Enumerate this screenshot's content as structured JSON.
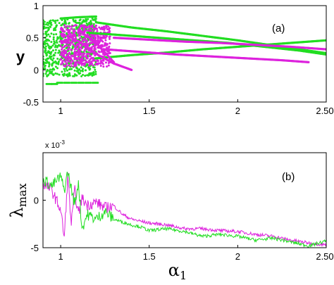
{
  "chart_data": [
    {
      "type": "scatter",
      "annotation": "(a)",
      "ylabel": "y",
      "xlim": [
        0.9,
        2.5
      ],
      "ylim": [
        -0.5,
        1
      ],
      "x_ticks": [
        "1",
        "1.5",
        "2",
        "2.50"
      ],
      "y_ticks": [
        "1",
        "0.5",
        "0",
        "-0.5"
      ],
      "colors": [
        "#22dd22",
        "#dd22dd"
      ],
      "series": [
        {
          "color": "#22dd22",
          "branches": [
            {
              "x": [
                1.2,
                1.4,
                1.6,
                1.8,
                2.0,
                2.2,
                2.4,
                2.5
              ],
              "y": [
                0.74,
                0.66,
                0.6,
                0.53,
                0.46,
                0.38,
                0.3,
                0.26
              ]
            },
            {
              "x": [
                1.15,
                1.35,
                1.55,
                1.75,
                1.95,
                2.15,
                2.35,
                2.5
              ],
              "y": [
                0.58,
                0.54,
                0.5,
                0.46,
                0.42,
                0.36,
                0.3,
                0.24
              ]
            },
            {
              "x": [
                1.2,
                1.4,
                1.6,
                1.8,
                2.0,
                2.2,
                2.4,
                2.5
              ],
              "y": [
                0.18,
                0.23,
                0.27,
                0.32,
                0.36,
                0.4,
                0.44,
                0.46
              ]
            },
            {
              "x": [
                1.0,
                1.1,
                1.2
              ],
              "y": [
                0.8,
                0.82,
                0.83
              ]
            }
          ],
          "chaotic_band": {
            "x": [
              0.9,
              1.2
            ],
            "y": [
              -0.1,
              0.8
            ]
          },
          "low_points": {
            "x": [
              0.92,
              0.95,
              0.98,
              1.02,
              1.06,
              1.1,
              1.14,
              1.18
            ],
            "y": [
              -0.22,
              -0.22,
              -0.2,
              -0.2,
              -0.2,
              -0.2,
              -0.2,
              -0.2
            ]
          }
        },
        {
          "color": "#dd22dd",
          "branches": [
            {
              "x": [
                1.3,
                1.5,
                1.7,
                1.9,
                2.1,
                2.3,
                2.5
              ],
              "y": [
                0.5,
                0.47,
                0.44,
                0.42,
                0.39,
                0.36,
                0.32
              ]
            },
            {
              "x": [
                1.25,
                1.45,
                1.65,
                1.85,
                2.05,
                2.25,
                2.4
              ],
              "y": [
                0.32,
                0.28,
                0.24,
                0.21,
                0.18,
                0.15,
                0.12
              ]
            },
            {
              "x": [
                1.1,
                1.2,
                1.3,
                1.4
              ],
              "y": [
                0.45,
                0.25,
                0.1,
                0.0
              ]
            },
            {
              "x": [
                1.1,
                1.2,
                1.3
              ],
              "y": [
                0.62,
                0.42,
                0.12
              ]
            }
          ],
          "chaotic_band": {
            "x": [
              1.0,
              1.28
            ],
            "y": [
              0.05,
              0.7
            ]
          }
        }
      ]
    },
    {
      "type": "line",
      "annotation": "(b)",
      "ylabel": "λmax",
      "xlabel": "α1",
      "scale_label": "x 10-3",
      "xlim": [
        0.9,
        2.5
      ],
      "ylim": [
        -5,
        5
      ],
      "x_ticks": [
        "1",
        "1.5",
        "2",
        "2.50"
      ],
      "y_ticks": [
        "0",
        "-5"
      ],
      "colors": [
        "#dd22dd",
        "#22dd22"
      ],
      "series": [
        {
          "color": "#dd22dd",
          "x": [
            0.9,
            0.95,
            1.0,
            1.02,
            1.04,
            1.06,
            1.08,
            1.1,
            1.12,
            1.15,
            1.2,
            1.25,
            1.3,
            1.35,
            1.4,
            1.45,
            1.5,
            1.6,
            1.7,
            1.8,
            1.9,
            2.0,
            2.1,
            2.2,
            2.3,
            2.4,
            2.5
          ],
          "y": [
            1.8,
            1.0,
            -1.0,
            -4.0,
            2.5,
            -2.5,
            1.0,
            -1.5,
            0.2,
            -0.5,
            -0.2,
            -0.8,
            -0.6,
            -1.5,
            -2.0,
            -2.2,
            -2.4,
            -2.6,
            -3.0,
            -3.0,
            -3.2,
            -3.3,
            -3.6,
            -3.8,
            -4.2,
            -4.5,
            -4.7
          ]
        },
        {
          "color": "#22dd22",
          "x": [
            0.9,
            0.95,
            1.0,
            1.02,
            1.04,
            1.06,
            1.08,
            1.1,
            1.12,
            1.15,
            1.2,
            1.25,
            1.3,
            1.35,
            1.4,
            1.45,
            1.5,
            1.6,
            1.7,
            1.8,
            1.9,
            2.0,
            2.1,
            2.2,
            2.3,
            2.4,
            2.5
          ],
          "y": [
            2.2,
            1.5,
            2.5,
            1.0,
            3.0,
            1.2,
            -0.5,
            2.0,
            -3.0,
            -1.5,
            -2.0,
            -1.2,
            -2.0,
            -2.3,
            -2.6,
            -2.8,
            -3.2,
            -3.0,
            -3.3,
            -3.8,
            -3.6,
            -3.8,
            -4.2,
            -4.0,
            -4.4,
            -4.8,
            -4.3
          ]
        }
      ]
    }
  ]
}
